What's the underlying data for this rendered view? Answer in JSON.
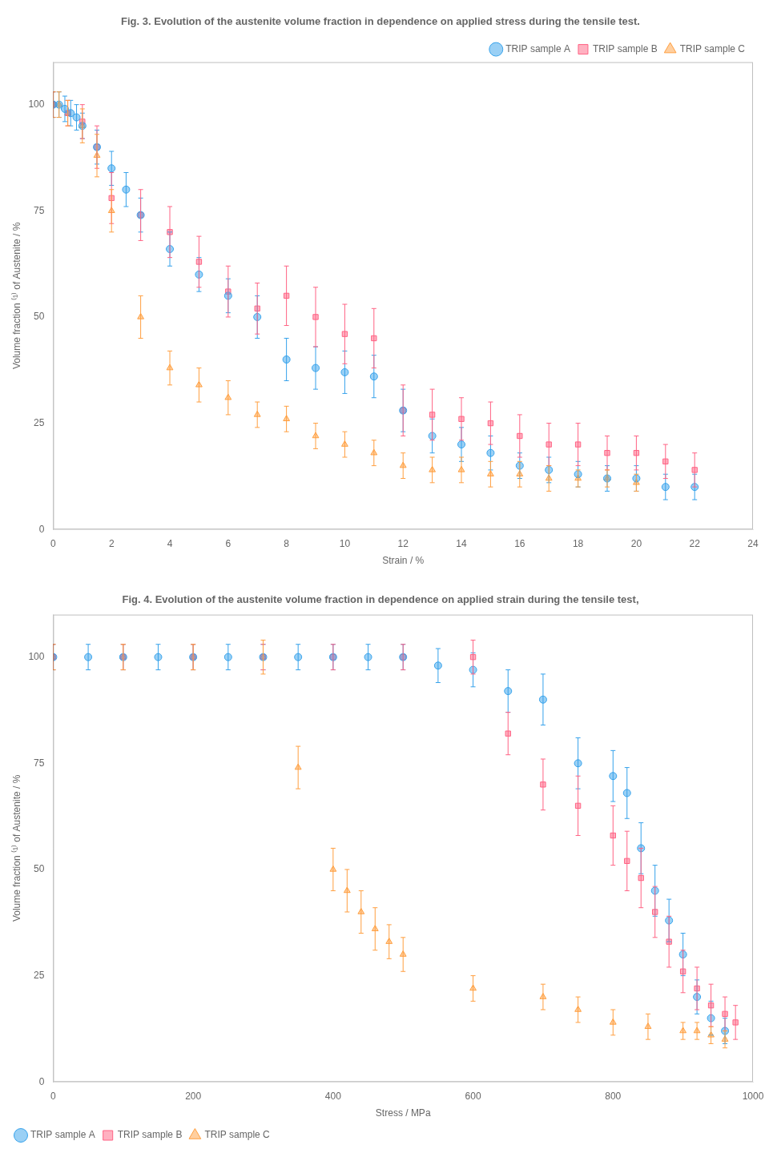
{
  "chart_data": [
    {
      "type": "scatter",
      "title": "Fig. 3. Evolution of the austenite volume fraction in dependence on applied stress during the tensile test.",
      "xlabel": "Strain / %",
      "ylabel": "Volume fraction ⁽¹⁾ of Austenite / %",
      "xlim": [
        0,
        24
      ],
      "xticks": [
        0,
        2,
        4,
        6,
        8,
        10,
        12,
        14,
        16,
        18,
        20,
        22,
        24
      ],
      "ylim": [
        0,
        110
      ],
      "yticks": [
        0,
        25,
        50,
        75,
        100
      ],
      "grid": false,
      "legend": "upper right",
      "series": [
        {
          "name": "TRIP sample A",
          "marker": "circle",
          "x": [
            0,
            0.2,
            0.4,
            0.6,
            0.8,
            1.0,
            1.5,
            2.0,
            2.5,
            3.0,
            4.0,
            5.0,
            6.0,
            7.0,
            8.0,
            9.0,
            10.0,
            11.0,
            12.0,
            13.0,
            14.0,
            15.0,
            16.0,
            17.0,
            18.0,
            19.0,
            20.0,
            21.0,
            22.0
          ],
          "values": [
            100,
            100,
            99,
            98,
            97,
            95,
            90,
            85,
            80,
            74,
            66,
            60,
            55,
            50,
            40,
            38,
            37,
            36,
            28,
            22,
            20,
            18,
            15,
            14,
            13,
            12,
            12,
            10,
            10
          ],
          "yerr": [
            3,
            3,
            3,
            3,
            3,
            3,
            4,
            4,
            4,
            4,
            4,
            4,
            4,
            5,
            5,
            5,
            5,
            5,
            5,
            4,
            4,
            4,
            3,
            3,
            3,
            3,
            3,
            3,
            3
          ]
        },
        {
          "name": "TRIP sample B",
          "marker": "square",
          "x": [
            0,
            0.5,
            1.0,
            1.5,
            2.0,
            3.0,
            4.0,
            5.0,
            6.0,
            7.0,
            8.0,
            9.0,
            10.0,
            11.0,
            12.0,
            13.0,
            14.0,
            15.0,
            16.0,
            17.0,
            18.0,
            19.0,
            20.0,
            21.0,
            22.0
          ],
          "values": [
            100,
            98,
            96,
            90,
            78,
            74,
            70,
            63,
            56,
            52,
            55,
            50,
            46,
            45,
            28,
            27,
            26,
            25,
            22,
            20,
            20,
            18,
            18,
            16,
            14
          ],
          "yerr": [
            3,
            3,
            4,
            5,
            6,
            6,
            6,
            6,
            6,
            6,
            7,
            7,
            7,
            7,
            6,
            6,
            5,
            5,
            5,
            5,
            5,
            4,
            4,
            4,
            4
          ]
        },
        {
          "name": "TRIP sample C",
          "marker": "triangle",
          "x": [
            0,
            0.2,
            0.5,
            1.0,
            1.5,
            2.0,
            3.0,
            4.0,
            5.0,
            6.0,
            7.0,
            8.0,
            9.0,
            10.0,
            11.0,
            12.0,
            13.0,
            14.0,
            15.0,
            16.0,
            17.0,
            18.0,
            19.0,
            20.0
          ],
          "values": [
            100,
            100,
            98,
            95,
            88,
            75,
            50,
            38,
            34,
            31,
            27,
            26,
            22,
            20,
            18,
            15,
            14,
            14,
            13,
            13,
            12,
            12,
            12,
            11
          ],
          "yerr": [
            3,
            3,
            3,
            4,
            5,
            5,
            5,
            4,
            4,
            4,
            3,
            3,
            3,
            3,
            3,
            3,
            3,
            3,
            3,
            3,
            3,
            2,
            2,
            2
          ]
        }
      ]
    },
    {
      "type": "scatter",
      "title": "Fig. 4. Evolution of the austenite volume fraction in dependence on applied strain during the tensile test,",
      "xlabel": "Stress / MPa",
      "ylabel": "Volume fraction ⁽¹⁾ of Austenite / %",
      "xlim": [
        0,
        1000
      ],
      "xticks": [
        0,
        200,
        400,
        600,
        800,
        1000
      ],
      "ylim": [
        0,
        110
      ],
      "yticks": [
        0,
        25,
        50,
        75,
        100
      ],
      "grid": false,
      "legend": "lower left",
      "series": [
        {
          "name": "TRIP sample A",
          "marker": "circle",
          "x": [
            0,
            50,
            100,
            150,
            200,
            250,
            300,
            350,
            400,
            450,
            500,
            550,
            600,
            650,
            700,
            750,
            800,
            820,
            840,
            860,
            880,
            900,
            920,
            940,
            960
          ],
          "values": [
            100,
            100,
            100,
            100,
            100,
            100,
            100,
            100,
            100,
            100,
            100,
            98,
            97,
            92,
            90,
            75,
            72,
            68,
            55,
            45,
            38,
            30,
            20,
            15,
            12
          ],
          "yerr": [
            3,
            3,
            3,
            3,
            3,
            3,
            3,
            3,
            3,
            3,
            3,
            4,
            4,
            5,
            6,
            6,
            6,
            6,
            6,
            6,
            5,
            5,
            4,
            4,
            3
          ]
        },
        {
          "name": "TRIP sample B",
          "marker": "square",
          "x": [
            0,
            100,
            200,
            300,
            400,
            500,
            600,
            650,
            700,
            750,
            800,
            820,
            840,
            860,
            880,
            900,
            920,
            940,
            960,
            975
          ],
          "values": [
            100,
            100,
            100,
            100,
            100,
            100,
            100,
            82,
            70,
            65,
            58,
            52,
            48,
            40,
            33,
            26,
            22,
            18,
            16,
            14
          ],
          "yerr": [
            3,
            3,
            3,
            3,
            3,
            3,
            4,
            5,
            6,
            7,
            7,
            7,
            7,
            6,
            6,
            5,
            5,
            5,
            4,
            4
          ]
        },
        {
          "name": "TRIP sample C",
          "marker": "triangle",
          "x": [
            0,
            100,
            200,
            300,
            350,
            400,
            420,
            440,
            460,
            480,
            500,
            600,
            700,
            750,
            800,
            850,
            900,
            920,
            940,
            960
          ],
          "values": [
            100,
            100,
            100,
            100,
            74,
            50,
            45,
            40,
            36,
            33,
            30,
            22,
            20,
            17,
            14,
            13,
            12,
            12,
            11,
            10
          ],
          "yerr": [
            3,
            3,
            3,
            4,
            5,
            5,
            5,
            5,
            5,
            4,
            4,
            3,
            3,
            3,
            3,
            3,
            2,
            2,
            2,
            2
          ]
        }
      ]
    }
  ]
}
